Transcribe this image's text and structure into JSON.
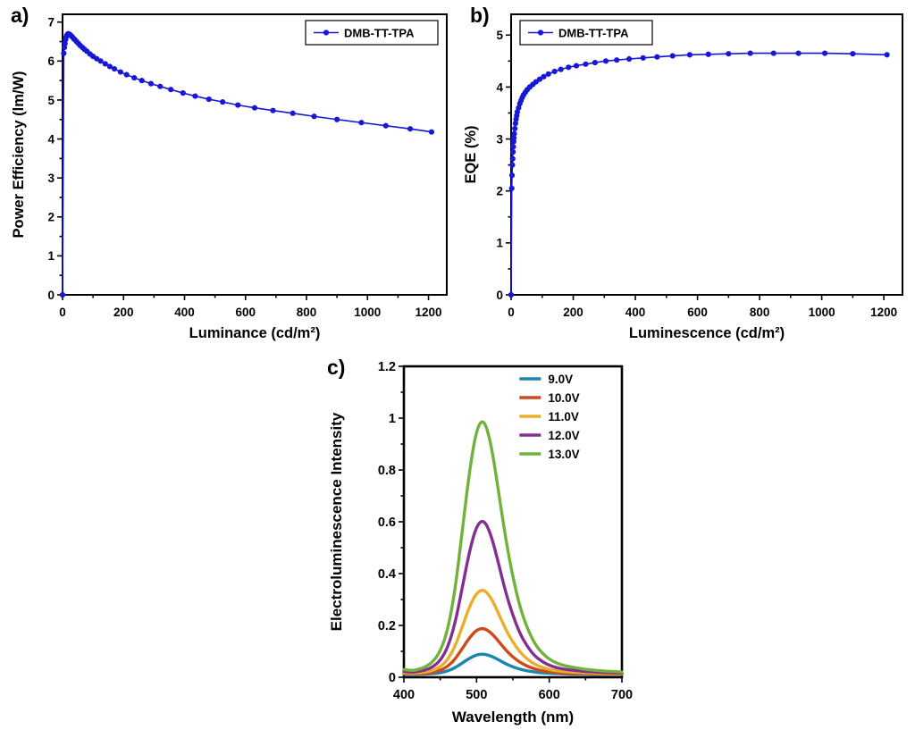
{
  "figure": {
    "background": "#ffffff"
  },
  "chart_data": [
    {
      "id": "a",
      "panel_label": "a)",
      "type": "line",
      "xlabel": "Luminance (cd/m²)",
      "ylabel": "Power Efficiency (lm/W)",
      "xlim": [
        0,
        1260
      ],
      "ylim": [
        0,
        7.2
      ],
      "xticks": [
        0,
        200,
        400,
        600,
        800,
        1000,
        1200
      ],
      "yticks": [
        0,
        1,
        2,
        3,
        4,
        5,
        6,
        7
      ],
      "legend": {
        "position": "top-right",
        "box": true
      },
      "series": [
        {
          "name": "DMB-TT-TPA",
          "color": "#1717d6",
          "marker": "circle",
          "x": [
            0,
            4,
            6,
            8,
            10,
            12,
            14,
            16,
            18,
            20,
            24,
            28,
            32,
            36,
            40,
            46,
            52,
            58,
            65,
            72,
            80,
            90,
            100,
            112,
            125,
            140,
            155,
            170,
            190,
            210,
            235,
            260,
            290,
            320,
            355,
            395,
            435,
            480,
            525,
            575,
            630,
            690,
            755,
            825,
            900,
            980,
            1060,
            1140,
            1210
          ],
          "y": [
            0,
            6.2,
            6.35,
            6.45,
            6.55,
            6.62,
            6.66,
            6.68,
            6.7,
            6.7,
            6.68,
            6.65,
            6.62,
            6.58,
            6.55,
            6.5,
            6.45,
            6.4,
            6.35,
            6.3,
            6.25,
            6.18,
            6.12,
            6.06,
            6.0,
            5.93,
            5.86,
            5.8,
            5.72,
            5.65,
            5.57,
            5.5,
            5.42,
            5.35,
            5.27,
            5.18,
            5.1,
            5.02,
            4.95,
            4.87,
            4.8,
            4.73,
            4.66,
            4.58,
            4.5,
            4.42,
            4.34,
            4.26,
            4.18
          ]
        }
      ]
    },
    {
      "id": "b",
      "panel_label": "b)",
      "type": "line",
      "xlabel": "Luminescence (cd/m²)",
      "ylabel": "EQE (%)",
      "xlim": [
        0,
        1260
      ],
      "ylim": [
        0,
        5.4
      ],
      "xticks": [
        0,
        200,
        400,
        600,
        800,
        1000,
        1200
      ],
      "yticks": [
        0,
        1,
        2,
        3,
        4,
        5
      ],
      "legend": {
        "position": "top-left",
        "box": true
      },
      "series": [
        {
          "name": "DMB-TT-TPA",
          "color": "#1717d6",
          "marker": "circle",
          "x": [
            0,
            2,
            3,
            4,
            5,
            6,
            7,
            8,
            9,
            10,
            12,
            14,
            16,
            18,
            20,
            24,
            28,
            32,
            36,
            40,
            46,
            52,
            60,
            70,
            80,
            92,
            105,
            120,
            140,
            160,
            185,
            210,
            240,
            270,
            305,
            340,
            380,
            425,
            470,
            520,
            575,
            635,
            700,
            770,
            845,
            925,
            1010,
            1100,
            1210
          ],
          "y": [
            0,
            2.05,
            2.3,
            2.5,
            2.62,
            2.75,
            2.85,
            2.95,
            3.02,
            3.1,
            3.2,
            3.3,
            3.38,
            3.45,
            3.52,
            3.6,
            3.68,
            3.74,
            3.8,
            3.85,
            3.9,
            3.95,
            4.0,
            4.05,
            4.1,
            4.15,
            4.2,
            4.25,
            4.3,
            4.34,
            4.38,
            4.41,
            4.44,
            4.47,
            4.5,
            4.52,
            4.54,
            4.56,
            4.58,
            4.6,
            4.62,
            4.63,
            4.64,
            4.65,
            4.65,
            4.65,
            4.65,
            4.64,
            4.62
          ]
        }
      ]
    },
    {
      "id": "c",
      "panel_label": "c)",
      "type": "line",
      "smooth": true,
      "xlabel": "Wavelength (nm)",
      "ylabel": "Electroluminescence Intensity",
      "xlim": [
        400,
        700
      ],
      "ylim": [
        0,
        1.2
      ],
      "xticks": [
        400,
        500,
        600,
        700
      ],
      "yticks": [
        0,
        0.2,
        0.4,
        0.6,
        0.8,
        1,
        1.2
      ],
      "ytick_labels": [
        "0",
        "0.2",
        "0.4",
        "0.6",
        "0.8",
        "1",
        "1.2"
      ],
      "legend": {
        "position": "top-right",
        "box": false
      },
      "x": [
        400,
        410,
        420,
        430,
        440,
        450,
        460,
        470,
        480,
        490,
        500,
        510,
        520,
        530,
        540,
        550,
        560,
        570,
        580,
        590,
        600,
        610,
        620,
        630,
        640,
        650,
        660,
        670,
        680,
        690,
        700
      ],
      "series": [
        {
          "name": "9.0V",
          "color": "#1b87ae",
          "values": [
            0.012,
            0.011,
            0.012,
            0.012,
            0.014,
            0.017,
            0.024,
            0.036,
            0.054,
            0.073,
            0.087,
            0.09,
            0.082,
            0.068,
            0.052,
            0.04,
            0.031,
            0.024,
            0.02,
            0.017,
            0.015,
            0.014,
            0.013,
            0.012,
            0.012,
            0.012,
            0.011,
            0.011,
            0.011,
            0.011,
            0.011
          ]
        },
        {
          "name": "10.0V",
          "color": "#cf4a16",
          "values": [
            0.014,
            0.013,
            0.014,
            0.015,
            0.019,
            0.026,
            0.041,
            0.068,
            0.109,
            0.152,
            0.183,
            0.19,
            0.172,
            0.14,
            0.105,
            0.078,
            0.057,
            0.042,
            0.032,
            0.025,
            0.021,
            0.018,
            0.016,
            0.015,
            0.015,
            0.014,
            0.013,
            0.013,
            0.012,
            0.012,
            0.012
          ]
        },
        {
          "name": "11.0V",
          "color": "#e9af2a",
          "values": [
            0.017,
            0.015,
            0.017,
            0.02,
            0.027,
            0.04,
            0.066,
            0.116,
            0.192,
            0.271,
            0.327,
            0.34,
            0.307,
            0.248,
            0.185,
            0.135,
            0.096,
            0.069,
            0.05,
            0.038,
            0.03,
            0.025,
            0.022,
            0.02,
            0.018,
            0.017,
            0.016,
            0.015,
            0.014,
            0.014,
            0.013
          ]
        },
        {
          "name": "12.0V",
          "color": "#832e90",
          "values": [
            0.022,
            0.019,
            0.022,
            0.028,
            0.04,
            0.064,
            0.112,
            0.202,
            0.34,
            0.484,
            0.586,
            0.61,
            0.55,
            0.442,
            0.328,
            0.238,
            0.166,
            0.118,
            0.082,
            0.061,
            0.046,
            0.037,
            0.031,
            0.028,
            0.025,
            0.022,
            0.021,
            0.019,
            0.018,
            0.017,
            0.016
          ]
        },
        {
          "name": "13.0V",
          "color": "#6fb23c",
          "values": [
            0.03,
            0.025,
            0.03,
            0.04,
            0.06,
            0.099,
            0.178,
            0.327,
            0.555,
            0.792,
            0.96,
            1.0,
            0.901,
            0.723,
            0.535,
            0.386,
            0.267,
            0.188,
            0.129,
            0.094,
            0.069,
            0.055,
            0.045,
            0.04,
            0.035,
            0.03,
            0.028,
            0.025,
            0.023,
            0.022,
            0.02
          ]
        }
      ]
    }
  ]
}
